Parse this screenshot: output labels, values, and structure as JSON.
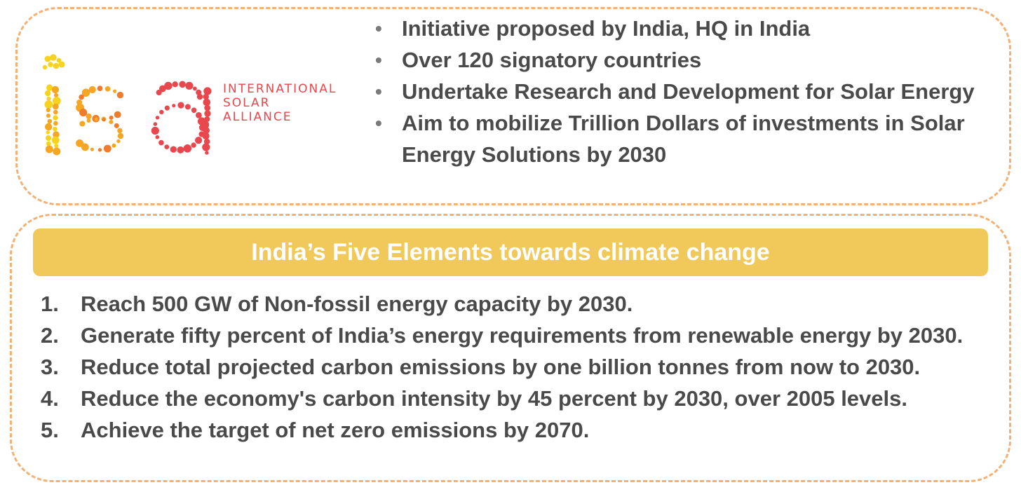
{
  "logo": {
    "line1": "INTERNATIONAL",
    "line2": "SOLAR",
    "line3": "ALLIANCE",
    "colors": [
      "#f7d21f",
      "#f5a623",
      "#f07b2a",
      "#e8484d"
    ]
  },
  "isa_points": [
    "Initiative proposed by India, HQ in India",
    "Over 120 signatory countries",
    "Undertake Research and Development for Solar Energy",
    "Aim to mobilize Trillion Dollars of investments in Solar Energy Solutions by 2030"
  ],
  "banner": {
    "title": "India’s Five Elements towards climate change",
    "color": "#f1c95b"
  },
  "elements": [
    {
      "num": "1.",
      "text": "Reach 500 GW of Non-fossil energy capacity by 2030."
    },
    {
      "num": "2.",
      "text": "Generate fifty percent of India’s energy requirements from renewable energy by 2030."
    },
    {
      "num": "3.",
      "text": "Reduce total projected carbon emissions by one billion tonnes from now to 2030."
    },
    {
      "num": "4.",
      "text": "Reduce the economy's carbon intensity by 45 percent by 2030, over 2005 levels."
    },
    {
      "num": "5.",
      "text": "Achieve the target of net zero emissions by 2070."
    }
  ]
}
